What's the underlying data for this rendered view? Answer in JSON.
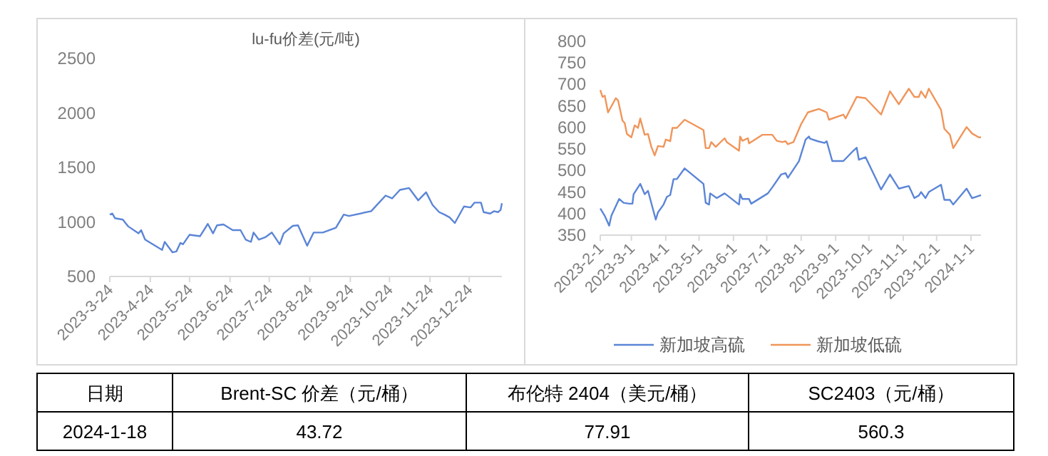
{
  "chart_data": [
    {
      "type": "line",
      "title": "lu-fu价差(元/吨)",
      "xlim": [
        "2023-03-24",
        "2024-01-18"
      ],
      "ylim": [
        500,
        2500
      ],
      "yticks": [
        500,
        1000,
        1500,
        2000,
        2500
      ],
      "xticks": [
        {
          "value": "2023-03-24",
          "label": "2023-3-24"
        },
        {
          "value": "2023-04-24",
          "label": "2023-4-24"
        },
        {
          "value": "2023-05-24",
          "label": "2023-5-24"
        },
        {
          "value": "2023-06-24",
          "label": "2023-6-24"
        },
        {
          "value": "2023-07-24",
          "label": "2023-7-24"
        },
        {
          "value": "2023-08-24",
          "label": "2023-8-24"
        },
        {
          "value": "2023-09-24",
          "label": "2023-9-24"
        },
        {
          "value": "2023-10-24",
          "label": "2023-10-24"
        },
        {
          "value": "2023-11-24",
          "label": "2023-11-24"
        },
        {
          "value": "2023-12-24",
          "label": "2023-12-24"
        }
      ],
      "series": [
        {
          "color": "#5b85d6",
          "x": [
            "2023-03-24",
            "2023-03-26",
            "2023-03-28",
            "2023-04-03",
            "2023-04-05",
            "2023-04-07",
            "2023-04-15",
            "2023-04-17",
            "2023-04-20",
            "2023-05-03",
            "2023-05-05",
            "2023-05-11",
            "2023-05-14",
            "2023-05-17",
            "2023-05-19",
            "2023-05-24",
            "2023-06-01",
            "2023-06-07",
            "2023-06-11",
            "2023-06-14",
            "2023-06-19",
            "2023-06-26",
            "2023-07-02",
            "2023-07-06",
            "2023-07-10",
            "2023-07-12",
            "2023-07-16",
            "2023-07-21",
            "2023-07-26",
            "2023-08-01",
            "2023-08-04",
            "2023-08-11",
            "2023-08-15",
            "2023-08-22",
            "2023-08-27",
            "2023-09-03",
            "2023-09-13",
            "2023-09-19",
            "2023-09-23",
            "2023-10-10",
            "2023-10-15",
            "2023-10-21",
            "2023-10-26",
            "2023-11-01",
            "2023-11-08",
            "2023-11-15",
            "2023-11-21",
            "2023-11-26",
            "2023-12-01",
            "2023-12-05",
            "2023-12-09",
            "2023-12-13",
            "2023-12-20",
            "2023-12-25",
            "2023-12-28",
            "2024-01-02",
            "2024-01-04",
            "2024-01-09",
            "2024-01-12",
            "2024-01-15",
            "2024-01-17",
            "2024-01-18"
          ],
          "values": [
            1068,
            1077,
            1034,
            1021,
            990,
            960,
            895,
            925,
            838,
            743,
            817,
            721,
            730,
            808,
            795,
            882,
            869,
            982,
            895,
            969,
            977,
            925,
            925,
            838,
            817,
            903,
            838,
            860,
            903,
            795,
            895,
            964,
            969,
            782,
            903,
            903,
            947,
            1068,
            1055,
            1099,
            1164,
            1242,
            1216,
            1294,
            1311,
            1198,
            1272,
            1155,
            1090,
            1068,
            1042,
            990,
            1142,
            1133,
            1177,
            1177,
            1090,
            1077,
            1099,
            1090,
            1110,
            1172
          ]
        }
      ]
    },
    {
      "type": "line",
      "legend": "bottom",
      "xlim": [
        "2023-02-01",
        "2024-01-10"
      ],
      "ylim": [
        350,
        800
      ],
      "yticks": [
        350,
        400,
        450,
        500,
        550,
        600,
        650,
        700,
        750,
        800
      ],
      "xticks": [
        {
          "value": "2023-02-01",
          "label": "2023-2-1"
        },
        {
          "value": "2023-03-01",
          "label": "2023-3-1"
        },
        {
          "value": "2023-04-01",
          "label": "2023-4-1"
        },
        {
          "value": "2023-05-01",
          "label": "2023-5-1"
        },
        {
          "value": "2023-06-01",
          "label": "2023-6-1"
        },
        {
          "value": "2023-07-01",
          "label": "2023-7-1"
        },
        {
          "value": "2023-08-01",
          "label": "2023-8-1"
        },
        {
          "value": "2023-09-01",
          "label": "2023-9-1"
        },
        {
          "value": "2023-10-01",
          "label": "2023-10-1"
        },
        {
          "value": "2023-11-01",
          "label": "2023-11-1"
        },
        {
          "value": "2023-12-01",
          "label": "2023-12-1"
        },
        {
          "value": "2024-01-01",
          "label": "2024-1-1"
        }
      ],
      "series": [
        {
          "name": "新加坡高硫",
          "color": "#5b85d6",
          "x": [
            "2023-02-01",
            "2023-02-05",
            "2023-02-09",
            "2023-02-11",
            "2023-02-18",
            "2023-02-22",
            "2023-02-27",
            "2023-03-02",
            "2023-03-03",
            "2023-03-09",
            "2023-03-13",
            "2023-03-16",
            "2023-03-23",
            "2023-03-25",
            "2023-03-30",
            "2023-04-02",
            "2023-04-05",
            "2023-04-08",
            "2023-04-11",
            "2023-04-18",
            "2023-05-05",
            "2023-05-07",
            "2023-05-10",
            "2023-05-11",
            "2023-05-17",
            "2023-05-24",
            "2023-06-06",
            "2023-06-07",
            "2023-06-09",
            "2023-06-15",
            "2023-06-17",
            "2023-07-02",
            "2023-07-06",
            "2023-07-14",
            "2023-07-18",
            "2023-07-20",
            "2023-07-30",
            "2023-08-05",
            "2023-08-08",
            "2023-08-09",
            "2023-08-16",
            "2023-08-22",
            "2023-08-24",
            "2023-08-29",
            "2023-09-08",
            "2023-09-17",
            "2023-09-20",
            "2023-09-22",
            "2023-09-28",
            "2023-10-12",
            "2023-10-20",
            "2023-10-28",
            "2023-11-06",
            "2023-11-11",
            "2023-11-15",
            "2023-11-17",
            "2023-11-21",
            "2023-11-24",
            "2023-12-05",
            "2023-12-08",
            "2023-12-13",
            "2023-12-16",
            "2023-12-28",
            "2024-01-02",
            "2024-01-10"
          ],
          "values": [
            412,
            395,
            372,
            395,
            434,
            425,
            423,
            423,
            445,
            469,
            445,
            453,
            386,
            403,
            421,
            439,
            443,
            480,
            480,
            505,
            469,
            425,
            421,
            447,
            436,
            447,
            421,
            445,
            434,
            434,
            423,
            447,
            461,
            491,
            494,
            483,
            522,
            572,
            579,
            574,
            568,
            564,
            568,
            522,
            522,
            546,
            553,
            525,
            531,
            456,
            491,
            458,
            464,
            436,
            442,
            450,
            436,
            450,
            467,
            432,
            432,
            421,
            458,
            436,
            443
          ]
        },
        {
          "name": "新加坡低硫",
          "color": "#f0955a",
          "x": [
            "2023-02-01",
            "2023-02-03",
            "2023-02-05",
            "2023-02-08",
            "2023-02-15",
            "2023-02-17",
            "2023-02-21",
            "2023-02-23",
            "2023-02-25",
            "2023-03-01",
            "2023-03-04",
            "2023-03-07",
            "2023-03-09",
            "2023-03-13",
            "2023-03-16",
            "2023-03-19",
            "2023-03-22",
            "2023-03-25",
            "2023-03-30",
            "2023-04-01",
            "2023-04-05",
            "2023-04-07",
            "2023-04-11",
            "2023-04-18",
            "2023-05-05",
            "2023-05-07",
            "2023-05-10",
            "2023-05-12",
            "2023-05-16",
            "2023-05-24",
            "2023-05-26",
            "2023-06-06",
            "2023-06-07",
            "2023-06-09",
            "2023-06-14",
            "2023-06-15",
            "2023-06-27",
            "2023-07-06",
            "2023-07-10",
            "2023-07-15",
            "2023-07-18",
            "2023-07-20",
            "2023-07-25",
            "2023-08-01",
            "2023-08-07",
            "2023-08-17",
            "2023-08-24",
            "2023-08-26",
            "2023-09-08",
            "2023-09-10",
            "2023-09-20",
            "2023-09-28",
            "2023-10-12",
            "2023-10-20",
            "2023-10-28",
            "2023-11-06",
            "2023-11-11",
            "2023-11-15",
            "2023-11-17",
            "2023-11-21",
            "2023-11-24",
            "2023-12-05",
            "2023-12-08",
            "2023-12-13",
            "2023-12-16",
            "2023-12-28",
            "2024-01-02",
            "2024-01-08",
            "2024-01-10"
          ],
          "values": [
            687,
            671,
            674,
            635,
            668,
            663,
            616,
            610,
            585,
            577,
            605,
            599,
            621,
            583,
            585,
            555,
            535,
            557,
            555,
            572,
            568,
            599,
            599,
            618,
            594,
            552,
            552,
            566,
            555,
            575,
            566,
            546,
            579,
            569,
            575,
            563,
            583,
            583,
            569,
            566,
            568,
            561,
            566,
            608,
            635,
            643,
            635,
            618,
            630,
            621,
            671,
            668,
            630,
            684,
            654,
            690,
            671,
            671,
            684,
            669,
            690,
            641,
            597,
            583,
            552,
            601,
            586,
            577,
            577
          ]
        }
      ]
    },
    {
      "type": "other",
      "categories": [
        "日期",
        "Brent-SC 价差（元/桶）",
        "布伦特 2404（美元/桶）",
        "SC2403（元/桶）"
      ],
      "annotations": [
        "2024-1-18",
        "43.72",
        "77.91",
        "560.3"
      ]
    }
  ]
}
